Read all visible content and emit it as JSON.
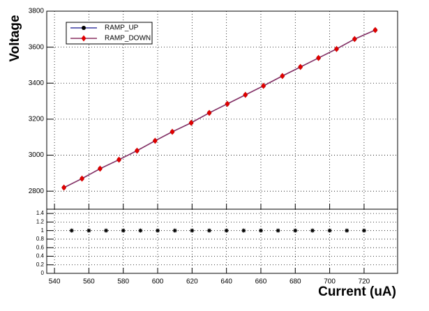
{
  "chart_data": [
    {
      "type": "line",
      "ylabel": "Voltage",
      "legend": "top-left",
      "grid": true,
      "xlim": [
        535.5,
        739.5
      ],
      "xticks": [
        540,
        560,
        580,
        600,
        620,
        640,
        660,
        680,
        700,
        720
      ],
      "ylim": [
        2700,
        3800
      ],
      "yticks": [
        2800,
        3000,
        3200,
        3400,
        3600,
        3800
      ],
      "x": [
        545.5,
        556,
        566.5,
        577.5,
        588,
        598.5,
        608.5,
        619.5,
        630,
        640.5,
        651,
        661.5,
        672.5,
        683,
        693.5,
        704,
        714.5,
        726.5
      ],
      "series": [
        {
          "name": "RAMP_UP",
          "color": "#000000",
          "line_color": "#3a3aa0",
          "marker": "circle",
          "values": [
            2820,
            2870,
            2925,
            2975,
            3025,
            3080,
            3130,
            3180,
            3235,
            3285,
            3335,
            3385,
            3440,
            3490,
            3540,
            3590,
            3645,
            3695
          ]
        },
        {
          "name": "RAMP_DOWN",
          "color": "#e00000",
          "line_color": "#8a3060",
          "marker": "diamond",
          "values": [
            2820,
            2870,
            2925,
            2975,
            3025,
            3080,
            3130,
            3180,
            3235,
            3285,
            3335,
            3385,
            3440,
            3490,
            3540,
            3590,
            3645,
            3695
          ]
        }
      ]
    },
    {
      "type": "scatter",
      "xlabel": "Current (uA)",
      "grid": true,
      "color": "#000000",
      "xlim": [
        535.5,
        739.5
      ],
      "xticks": [
        540,
        560,
        580,
        600,
        620,
        640,
        660,
        680,
        700,
        720
      ],
      "ylim": [
        0,
        1.5
      ],
      "yticks": [
        0,
        0.2,
        0.4,
        0.6,
        0.8,
        1,
        1.2,
        1.4
      ],
      "x": [
        550,
        560,
        570,
        580,
        590,
        600,
        610,
        620,
        630,
        640,
        650,
        660,
        670,
        680,
        690,
        700,
        710,
        720
      ],
      "values": [
        1,
        1,
        1,
        1,
        1,
        1,
        1,
        1,
        1,
        1,
        1,
        1,
        1,
        1,
        1,
        1,
        1,
        1
      ]
    }
  ]
}
